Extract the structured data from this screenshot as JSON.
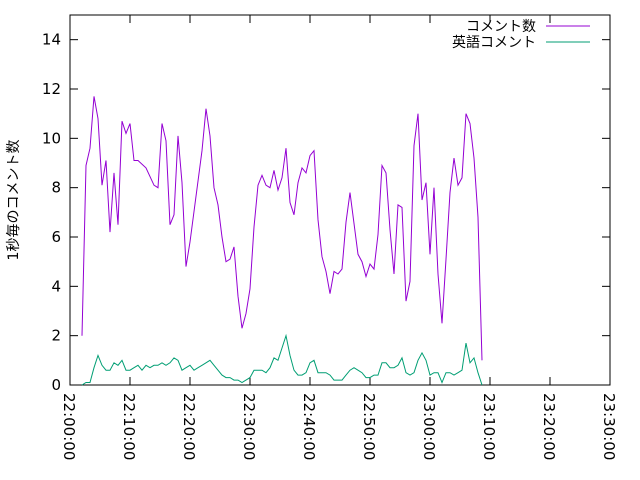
{
  "chart_data": {
    "type": "line",
    "title": "",
    "xlabel": "",
    "ylabel": "1秒毎のコメント数",
    "xlim": [
      "22:00:00",
      "23:30:00"
    ],
    "ylim": [
      0,
      15
    ],
    "x_ticks": [
      "22:00:00",
      "22:10:00",
      "22:20:00",
      "22:30:00",
      "22:40:00",
      "22:50:00",
      "23:00:00",
      "23:10:00",
      "23:20:00",
      "23:30:00"
    ],
    "y_ticks": [
      0,
      2,
      4,
      6,
      8,
      10,
      12,
      14
    ],
    "grid": false,
    "legend_position": "top-right",
    "series": [
      {
        "name": "コメント数",
        "color": "#9400d3",
        "points": [
          [
            "22:02:00",
            2.0
          ],
          [
            "22:02:40",
            8.9
          ],
          [
            "22:03:20",
            9.6
          ],
          [
            "22:04:00",
            11.7
          ],
          [
            "22:04:40",
            10.8
          ],
          [
            "22:05:20",
            8.1
          ],
          [
            "22:06:00",
            9.1
          ],
          [
            "22:06:40",
            6.2
          ],
          [
            "22:07:20",
            8.6
          ],
          [
            "22:08:00",
            6.5
          ],
          [
            "22:08:40",
            10.7
          ],
          [
            "22:09:20",
            10.2
          ],
          [
            "22:10:00",
            10.6
          ],
          [
            "22:10:40",
            9.1
          ],
          [
            "22:11:20",
            9.1
          ],
          [
            "22:12:40",
            8.8
          ],
          [
            "22:14:00",
            8.1
          ],
          [
            "22:14:40",
            8.0
          ],
          [
            "22:15:20",
            10.6
          ],
          [
            "22:16:00",
            9.9
          ],
          [
            "22:16:40",
            6.5
          ],
          [
            "22:17:20",
            6.9
          ],
          [
            "22:18:00",
            10.1
          ],
          [
            "22:18:40",
            8.2
          ],
          [
            "22:19:20",
            4.8
          ],
          [
            "22:20:00",
            5.8
          ],
          [
            "22:22:00",
            9.5
          ],
          [
            "22:22:40",
            11.2
          ],
          [
            "22:23:20",
            10.1
          ],
          [
            "22:24:00",
            8.0
          ],
          [
            "22:24:40",
            7.3
          ],
          [
            "22:25:20",
            6.0
          ],
          [
            "22:26:00",
            5.0
          ],
          [
            "22:26:40",
            5.1
          ],
          [
            "22:27:20",
            5.6
          ],
          [
            "22:28:00",
            3.6
          ],
          [
            "22:28:40",
            2.3
          ],
          [
            "22:29:20",
            2.9
          ],
          [
            "22:30:00",
            3.9
          ],
          [
            "22:30:40",
            6.4
          ],
          [
            "22:31:20",
            8.1
          ],
          [
            "22:32:00",
            8.5
          ],
          [
            "22:32:40",
            8.1
          ],
          [
            "22:33:20",
            8.0
          ],
          [
            "22:34:00",
            8.7
          ],
          [
            "22:34:40",
            7.9
          ],
          [
            "22:35:20",
            8.4
          ],
          [
            "22:36:00",
            9.6
          ],
          [
            "22:36:40",
            7.4
          ],
          [
            "22:37:20",
            6.9
          ],
          [
            "22:38:00",
            8.2
          ],
          [
            "22:38:40",
            8.8
          ],
          [
            "22:39:20",
            8.6
          ],
          [
            "22:40:00",
            9.3
          ],
          [
            "22:40:40",
            9.5
          ],
          [
            "22:41:20",
            6.7
          ],
          [
            "22:42:00",
            5.2
          ],
          [
            "22:42:40",
            4.6
          ],
          [
            "22:43:20",
            3.7
          ],
          [
            "22:44:00",
            4.6
          ],
          [
            "22:44:40",
            4.5
          ],
          [
            "22:45:20",
            4.7
          ],
          [
            "22:46:00",
            6.6
          ],
          [
            "22:46:40",
            7.8
          ],
          [
            "22:48:00",
            5.3
          ],
          [
            "22:48:40",
            5.0
          ],
          [
            "22:49:20",
            4.4
          ],
          [
            "22:50:00",
            4.9
          ],
          [
            "22:50:40",
            4.7
          ],
          [
            "22:51:20",
            6.1
          ],
          [
            "22:52:00",
            8.9
          ],
          [
            "22:52:40",
            8.6
          ],
          [
            "22:53:20",
            6.3
          ],
          [
            "22:54:00",
            4.5
          ],
          [
            "22:54:40",
            7.3
          ],
          [
            "22:55:20",
            7.2
          ],
          [
            "22:56:00",
            3.4
          ],
          [
            "22:56:40",
            4.2
          ],
          [
            "22:57:20",
            9.7
          ],
          [
            "22:58:00",
            11.0
          ],
          [
            "22:58:40",
            7.5
          ],
          [
            "22:59:20",
            8.2
          ],
          [
            "23:00:00",
            5.3
          ],
          [
            "23:00:40",
            8.0
          ],
          [
            "23:01:20",
            4.5
          ],
          [
            "23:02:00",
            2.5
          ],
          [
            "23:02:40",
            5.1
          ],
          [
            "23:03:20",
            7.8
          ],
          [
            "23:04:00",
            9.2
          ],
          [
            "23:04:40",
            8.1
          ],
          [
            "23:05:20",
            8.4
          ],
          [
            "23:06:00",
            11.0
          ],
          [
            "23:06:40",
            10.6
          ],
          [
            "23:07:20",
            9.2
          ],
          [
            "23:08:00",
            6.8
          ],
          [
            "23:08:40",
            1.0
          ]
        ]
      },
      {
        "name": "英語コメント",
        "color": "#009e73",
        "points": [
          [
            "22:02:00",
            0.0
          ],
          [
            "22:02:40",
            0.1
          ],
          [
            "22:03:20",
            0.1
          ],
          [
            "22:04:00",
            0.7
          ],
          [
            "22:04:40",
            1.2
          ],
          [
            "22:05:20",
            0.8
          ],
          [
            "22:06:00",
            0.6
          ],
          [
            "22:06:40",
            0.6
          ],
          [
            "22:07:20",
            0.9
          ],
          [
            "22:08:00",
            0.8
          ],
          [
            "22:08:40",
            1.0
          ],
          [
            "22:09:20",
            0.6
          ],
          [
            "22:10:00",
            0.6
          ],
          [
            "22:10:40",
            0.7
          ],
          [
            "22:11:20",
            0.8
          ],
          [
            "22:12:00",
            0.6
          ],
          [
            "22:12:40",
            0.8
          ],
          [
            "22:13:20",
            0.7
          ],
          [
            "22:14:00",
            0.8
          ],
          [
            "22:14:40",
            0.8
          ],
          [
            "22:15:20",
            0.9
          ],
          [
            "22:16:00",
            0.8
          ],
          [
            "22:16:40",
            0.9
          ],
          [
            "22:17:20",
            1.1
          ],
          [
            "22:18:00",
            1.0
          ],
          [
            "22:18:40",
            0.6
          ],
          [
            "22:19:20",
            0.7
          ],
          [
            "22:20:00",
            0.8
          ],
          [
            "22:20:40",
            0.6
          ],
          [
            "22:21:20",
            0.7
          ],
          [
            "22:22:00",
            0.8
          ],
          [
            "22:22:40",
            0.9
          ],
          [
            "22:23:20",
            1.0
          ],
          [
            "22:24:00",
            0.8
          ],
          [
            "22:24:40",
            0.6
          ],
          [
            "22:25:20",
            0.4
          ],
          [
            "22:26:00",
            0.3
          ],
          [
            "22:26:40",
            0.3
          ],
          [
            "22:27:20",
            0.2
          ],
          [
            "22:28:00",
            0.2
          ],
          [
            "22:28:40",
            0.1
          ],
          [
            "22:29:20",
            0.2
          ],
          [
            "22:30:00",
            0.3
          ],
          [
            "22:30:40",
            0.6
          ],
          [
            "22:31:20",
            0.6
          ],
          [
            "22:32:00",
            0.6
          ],
          [
            "22:32:40",
            0.5
          ],
          [
            "22:33:20",
            0.7
          ],
          [
            "22:34:00",
            1.1
          ],
          [
            "22:34:40",
            1.0
          ],
          [
            "22:35:20",
            1.5
          ],
          [
            "22:36:00",
            2.0
          ],
          [
            "22:36:40",
            1.2
          ],
          [
            "22:37:20",
            0.6
          ],
          [
            "22:38:00",
            0.4
          ],
          [
            "22:38:40",
            0.4
          ],
          [
            "22:39:20",
            0.5
          ],
          [
            "22:40:00",
            0.9
          ],
          [
            "22:40:40",
            1.0
          ],
          [
            "22:41:20",
            0.5
          ],
          [
            "22:42:00",
            0.5
          ],
          [
            "22:42:40",
            0.5
          ],
          [
            "22:43:20",
            0.4
          ],
          [
            "22:44:00",
            0.2
          ],
          [
            "22:44:40",
            0.2
          ],
          [
            "22:45:20",
            0.2
          ],
          [
            "22:46:00",
            0.4
          ],
          [
            "22:46:40",
            0.6
          ],
          [
            "22:47:20",
            0.7
          ],
          [
            "22:48:00",
            0.6
          ],
          [
            "22:48:40",
            0.5
          ],
          [
            "22:49:20",
            0.3
          ],
          [
            "22:50:00",
            0.3
          ],
          [
            "22:50:40",
            0.4
          ],
          [
            "22:51:20",
            0.4
          ],
          [
            "22:52:00",
            0.9
          ],
          [
            "22:52:40",
            0.9
          ],
          [
            "22:53:20",
            0.7
          ],
          [
            "22:54:00",
            0.7
          ],
          [
            "22:54:40",
            0.8
          ],
          [
            "22:55:20",
            1.1
          ],
          [
            "22:56:00",
            0.5
          ],
          [
            "22:56:40",
            0.4
          ],
          [
            "22:57:20",
            0.5
          ],
          [
            "22:58:00",
            1.0
          ],
          [
            "22:58:40",
            1.3
          ],
          [
            "22:59:20",
            1.0
          ],
          [
            "23:00:00",
            0.4
          ],
          [
            "23:00:40",
            0.5
          ],
          [
            "23:01:20",
            0.5
          ],
          [
            "23:02:00",
            0.1
          ],
          [
            "23:02:40",
            0.5
          ],
          [
            "23:03:20",
            0.5
          ],
          [
            "23:04:00",
            0.4
          ],
          [
            "23:04:40",
            0.5
          ],
          [
            "23:05:20",
            0.6
          ],
          [
            "23:06:00",
            1.7
          ],
          [
            "23:06:40",
            0.9
          ],
          [
            "23:07:20",
            1.1
          ],
          [
            "23:08:00",
            0.5
          ],
          [
            "23:08:40",
            0.0
          ]
        ]
      }
    ]
  }
}
